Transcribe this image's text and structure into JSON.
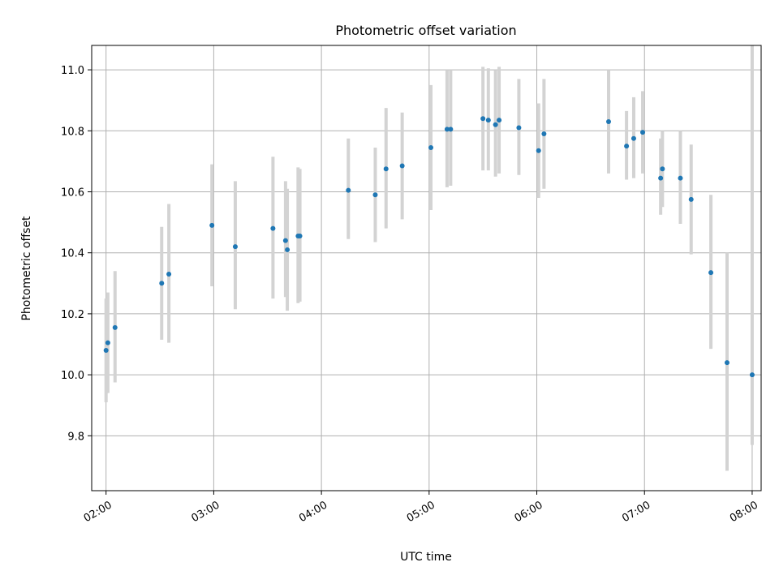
{
  "chart_data": {
    "type": "scatter",
    "title": "Photometric offset variation",
    "xlabel": "UTC time",
    "ylabel": "Photometric offset",
    "x_ticks": [
      "02:00",
      "03:00",
      "04:00",
      "05:00",
      "06:00",
      "07:00",
      "08:00"
    ],
    "y_ticks": [
      "9.8",
      "10.0",
      "10.2",
      "10.4",
      "10.6",
      "10.8",
      "11.0"
    ],
    "xlim": [
      "01:52",
      "08:05"
    ],
    "ylim": [
      9.62,
      11.08
    ],
    "grid": true,
    "marker_color": "#1f77b4",
    "errorbar_color": "#d3d3d3",
    "points": [
      {
        "t": "02:00",
        "y": 10.08,
        "lo": 9.91,
        "hi": 10.25
      },
      {
        "t": "02:01",
        "y": 10.105,
        "lo": 9.94,
        "hi": 10.27
      },
      {
        "t": "02:05",
        "y": 10.155,
        "lo": 9.975,
        "hi": 10.34
      },
      {
        "t": "02:31",
        "y": 10.3,
        "lo": 10.115,
        "hi": 10.485
      },
      {
        "t": "02:35",
        "y": 10.33,
        "lo": 10.105,
        "hi": 10.56
      },
      {
        "t": "02:59",
        "y": 10.49,
        "lo": 10.29,
        "hi": 10.69
      },
      {
        "t": "03:12",
        "y": 10.42,
        "lo": 10.215,
        "hi": 10.635
      },
      {
        "t": "03:33",
        "y": 10.48,
        "lo": 10.25,
        "hi": 10.715
      },
      {
        "t": "03:40",
        "y": 10.44,
        "lo": 10.255,
        "hi": 10.635
      },
      {
        "t": "03:41",
        "y": 10.41,
        "lo": 10.21,
        "hi": 10.61
      },
      {
        "t": "03:47",
        "y": 10.455,
        "lo": 10.235,
        "hi": 10.68
      },
      {
        "t": "03:48",
        "y": 10.455,
        "lo": 10.24,
        "hi": 10.675
      },
      {
        "t": "04:15",
        "y": 10.605,
        "lo": 10.445,
        "hi": 10.775
      },
      {
        "t": "04:30",
        "y": 10.59,
        "lo": 10.435,
        "hi": 10.745
      },
      {
        "t": "04:36",
        "y": 10.675,
        "lo": 10.48,
        "hi": 10.875
      },
      {
        "t": "04:45",
        "y": 10.685,
        "lo": 10.51,
        "hi": 10.86
      },
      {
        "t": "05:01",
        "y": 10.745,
        "lo": 10.54,
        "hi": 10.95
      },
      {
        "t": "05:10",
        "y": 10.805,
        "lo": 10.615,
        "hi": 11.0
      },
      {
        "t": "05:12",
        "y": 10.805,
        "lo": 10.62,
        "hi": 11.0
      },
      {
        "t": "05:30",
        "y": 10.84,
        "lo": 10.67,
        "hi": 11.01
      },
      {
        "t": "05:33",
        "y": 10.835,
        "lo": 10.67,
        "hi": 11.005
      },
      {
        "t": "05:37",
        "y": 10.82,
        "lo": 10.65,
        "hi": 11.0
      },
      {
        "t": "05:39",
        "y": 10.835,
        "lo": 10.66,
        "hi": 11.01
      },
      {
        "t": "05:50",
        "y": 10.81,
        "lo": 10.655,
        "hi": 10.97
      },
      {
        "t": "06:01",
        "y": 10.735,
        "lo": 10.58,
        "hi": 10.89
      },
      {
        "t": "06:04",
        "y": 10.79,
        "lo": 10.61,
        "hi": 10.97
      },
      {
        "t": "06:40",
        "y": 10.83,
        "lo": 10.66,
        "hi": 11.0
      },
      {
        "t": "06:50",
        "y": 10.75,
        "lo": 10.64,
        "hi": 10.865
      },
      {
        "t": "06:54",
        "y": 10.775,
        "lo": 10.645,
        "hi": 10.91
      },
      {
        "t": "06:59",
        "y": 10.795,
        "lo": 10.66,
        "hi": 10.93
      },
      {
        "t": "07:09",
        "y": 10.645,
        "lo": 10.525,
        "hi": 10.775
      },
      {
        "t": "07:10",
        "y": 10.675,
        "lo": 10.55,
        "hi": 10.8
      },
      {
        "t": "07:20",
        "y": 10.645,
        "lo": 10.495,
        "hi": 10.8
      },
      {
        "t": "07:26",
        "y": 10.575,
        "lo": 10.395,
        "hi": 10.755
      },
      {
        "t": "07:37",
        "y": 10.335,
        "lo": 10.085,
        "hi": 10.59
      },
      {
        "t": "07:46",
        "y": 10.04,
        "lo": 9.685,
        "hi": 10.4
      },
      {
        "t": "08:00",
        "y": 10.0,
        "lo": 9.77,
        "hi": 11.08
      }
    ]
  }
}
